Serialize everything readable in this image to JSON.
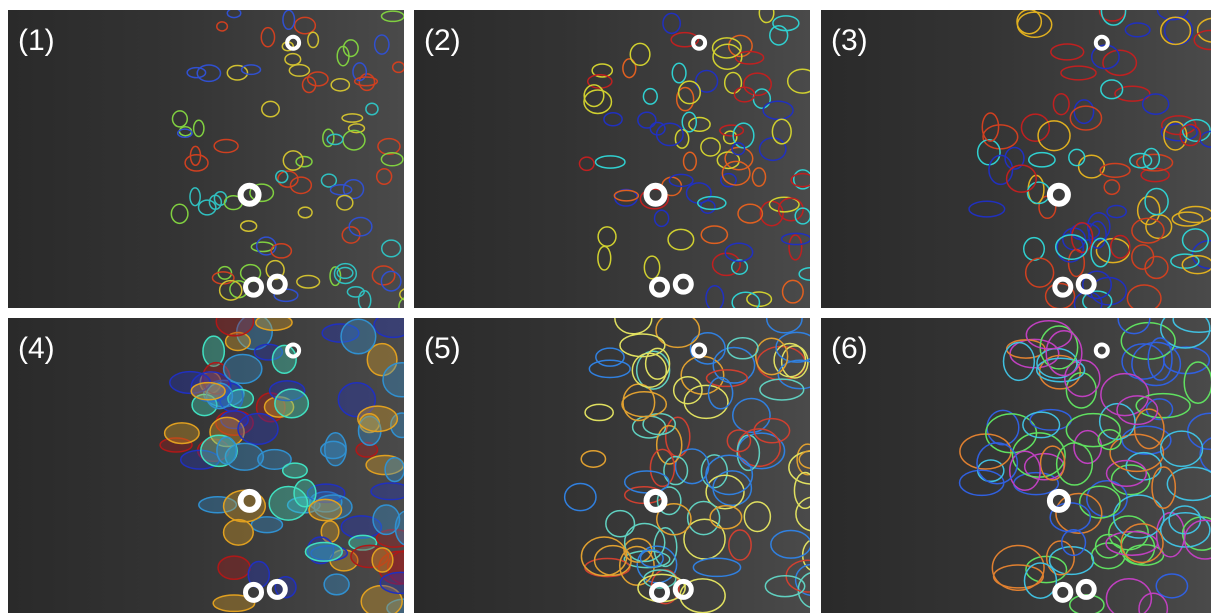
{
  "panels": [
    {
      "label": "(1)"
    },
    {
      "label": "(2)"
    },
    {
      "label": "(3)"
    },
    {
      "label": "(4)"
    },
    {
      "label": "(5)"
    },
    {
      "label": "(6)"
    }
  ]
}
